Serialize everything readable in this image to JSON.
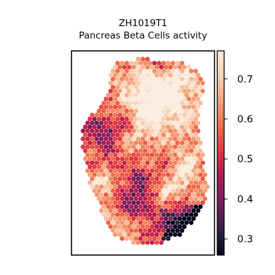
{
  "title_lines": [
    "ZH1019T1",
    "Pancreas Beta Cells activity"
  ],
  "chart_data": {
    "type": "heatmap",
    "subtype": "spatial-hexbin",
    "title": "ZH1019T1\nPancreas Beta Cells activity",
    "xlabel": "",
    "ylabel": "",
    "axes_ticks_visible": false,
    "grid": false,
    "colormap": "rocket",
    "colorbar": {
      "location": "right",
      "vmin": 0.26,
      "vmax": 0.77,
      "ticks": [
        0.3,
        0.4,
        0.5,
        0.6,
        0.7
      ],
      "tick_labels": [
        "0.3",
        "0.4",
        "0.5",
        "0.6",
        "0.7"
      ]
    },
    "value_range_observed": [
      0.26,
      0.77
    ],
    "notes_visible": "tissue section shaped region of hexagonal spots; low activity (dark) clusters at lower-right edge and top edge, high activity (light) spots dominate upper and left-central areas"
  },
  "colors": {
    "axes_border": "#000000",
    "background": "#ffffff",
    "cmap_stops": [
      "#03051a",
      "#2c1e3e",
      "#5b1f56",
      "#8a1e5c",
      "#b8194f",
      "#e13342",
      "#f06043",
      "#f48a62",
      "#f6b48e",
      "#f9d8bf",
      "#faebdd"
    ]
  }
}
